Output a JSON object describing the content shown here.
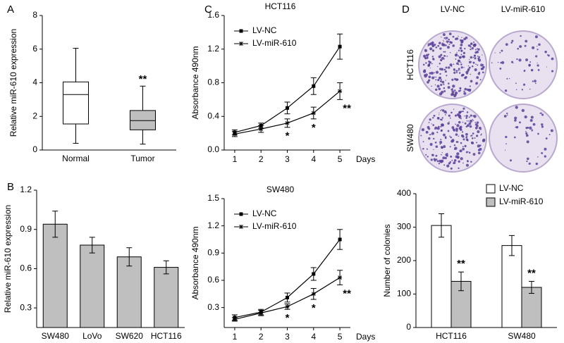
{
  "panel_labels": [
    "A",
    "B",
    "C",
    "D"
  ],
  "colony_images": {
    "column_labels": [
      "LV-NC",
      "LV-miR-610"
    ],
    "row_labels": [
      "HCT116",
      "SW480"
    ]
  },
  "chart_data": [
    {
      "type": "box",
      "y_label": "Relative miR-610 expression",
      "categories": [
        "Normal",
        "Tumor"
      ],
      "boxes": [
        {
          "min": 0.4,
          "q1": 1.55,
          "median": 3.3,
          "q3": 4.05,
          "max": 6.05
        },
        {
          "min": 0.35,
          "q1": 1.2,
          "median": 1.75,
          "q3": 2.35,
          "max": 3.8
        }
      ],
      "colors": [
        "#ffffff",
        "#bfbfbf"
      ],
      "ylim": [
        0,
        8
      ],
      "yticks": [
        0,
        2,
        4,
        6,
        8
      ],
      "annotations": [
        "**"
      ]
    },
    {
      "type": "bar",
      "y_label": "Relative miR-610 expression",
      "categories": [
        "SW480",
        "LoVo",
        "SW620",
        "HCT116"
      ],
      "values": [
        0.94,
        0.78,
        0.69,
        0.61
      ],
      "errors": [
        0.1,
        0.06,
        0.07,
        0.05
      ],
      "color": "#bfbfbf",
      "ylim": [
        0.15,
        1.2
      ],
      "yticks": [
        0.3,
        0.6,
        0.9,
        1.2
      ]
    },
    {
      "type": "line",
      "title": "HCT116",
      "y_label": "Absorbance 490nm",
      "x_label": "Days",
      "x": [
        1,
        2,
        3,
        4,
        5
      ],
      "xlim": [
        0.6,
        5.4
      ],
      "xticks": [
        1,
        2,
        3,
        4,
        5
      ],
      "ylim": [
        0,
        1.6
      ],
      "yticks": [
        {
          "value": 0,
          "label": "0.0"
        },
        0.4,
        0.8,
        1.2,
        1.6
      ],
      "series": [
        {
          "name": "LV-NC",
          "color": "#000000",
          "marker": "square",
          "values": [
            0.21,
            0.29,
            0.5,
            0.76,
            1.23
          ],
          "errors": [
            0.03,
            0.03,
            0.07,
            0.1,
            0.15
          ]
        },
        {
          "name": "LV-miR-610",
          "color": "#000000",
          "marker": "star",
          "values": [
            0.19,
            0.25,
            0.32,
            0.44,
            0.7
          ],
          "errors": [
            0.03,
            0.04,
            0.05,
            0.07,
            0.1
          ]
        }
      ],
      "annotations": [
        "*",
        "*",
        "**"
      ]
    },
    {
      "type": "line",
      "title": "SW480",
      "y_label": "Absorbance 490nm",
      "x_label": "Days",
      "x": [
        1,
        2,
        3,
        4,
        5
      ],
      "xlim": [
        0.6,
        5.4
      ],
      "xticks": [
        1,
        2,
        3,
        4,
        5
      ],
      "ylim": [
        0.08,
        1.5
      ],
      "yticks": [
        0.3,
        0.6,
        0.9,
        1.2,
        1.5
      ],
      "series": [
        {
          "name": "LV-NC",
          "color": "#000000",
          "marker": "square",
          "values": [
            0.19,
            0.25,
            0.41,
            0.67,
            1.05
          ],
          "errors": [
            0.03,
            0.03,
            0.05,
            0.07,
            0.11
          ]
        },
        {
          "name": "LV-miR-610",
          "color": "#000000",
          "marker": "star",
          "values": [
            0.17,
            0.24,
            0.31,
            0.45,
            0.63
          ],
          "errors": [
            0.02,
            0.03,
            0.03,
            0.06,
            0.08
          ]
        }
      ],
      "annotations": [
        "*",
        "*",
        "**"
      ]
    },
    {
      "type": "grouped_bar",
      "y_label": "Number of colonies",
      "categories": [
        "HCT116",
        "SW480"
      ],
      "series": [
        {
          "name": "LV-NC",
          "color": "#ffffff",
          "values": [
            305,
            245
          ],
          "errors": [
            35,
            30
          ]
        },
        {
          "name": "LV-miR-610",
          "color": "#bfbfbf",
          "values": [
            138,
            120
          ],
          "errors": [
            28,
            18
          ]
        }
      ],
      "ylim": [
        0,
        400
      ],
      "yticks": [
        0,
        100,
        200,
        300,
        400
      ],
      "legend": "top-right",
      "annotations": [
        "**",
        "**"
      ]
    }
  ]
}
